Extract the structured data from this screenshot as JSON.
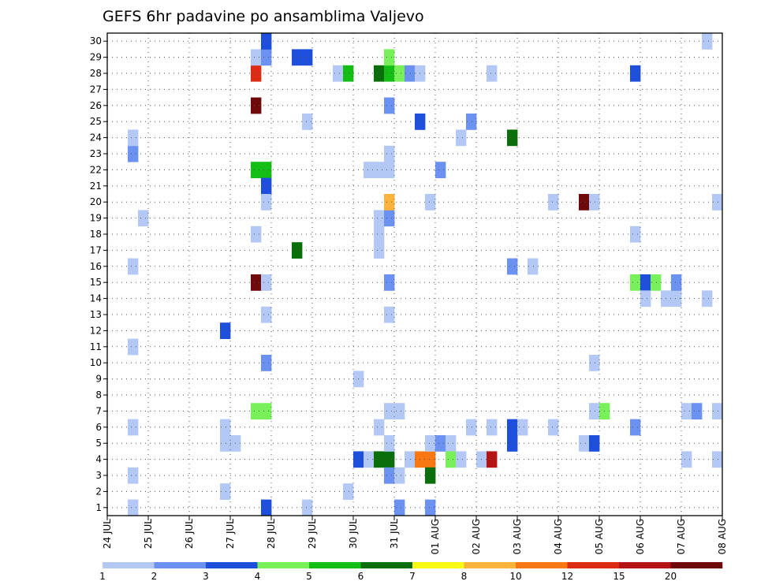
{
  "chart_data": {
    "type": "heatmap",
    "title": "GEFS 6hr padavine po ansamblima Valjevo",
    "xlabel": "",
    "ylabel": "",
    "x_tick_labels": [
      "24 JUL",
      "25 JUL",
      "26 JUL",
      "27 JUL",
      "28 JUL",
      "29 JUL",
      "30 JUL",
      "31 JUL",
      "01 AUG",
      "02 AUG",
      "03 AUG",
      "04 AUG",
      "05 AUG",
      "06 AUG",
      "07 AUG",
      "08 AUG"
    ],
    "x_tick_days": [
      0,
      1,
      2,
      3,
      4,
      5,
      6,
      7,
      8,
      9,
      10,
      11,
      12,
      13,
      14,
      15
    ],
    "xlim": [
      0,
      15
    ],
    "y_tick_labels": [
      "1",
      "2",
      "3",
      "4",
      "5",
      "6",
      "7",
      "8",
      "9",
      "10",
      "11",
      "12",
      "13",
      "14",
      "15",
      "16",
      "17",
      "18",
      "19",
      "20",
      "21",
      "22",
      "23",
      "24",
      "25",
      "26",
      "27",
      "28",
      "29",
      "30"
    ],
    "ylim": [
      0.5,
      30.5
    ],
    "grid": true,
    "time_step_days": 0.25,
    "colorbar": {
      "position": "bottom",
      "labels": [
        "1",
        "2",
        "3",
        "4",
        "5",
        "6",
        "7",
        "8",
        "10",
        "12",
        "15",
        "20"
      ],
      "colors": [
        "#b4c8f5",
        "#6b92f0",
        "#1e4fdc",
        "#78f05a",
        "#14be14",
        "#0a6e0a",
        "#fafa14",
        "#fab43c",
        "#fa7814",
        "#dc2d14",
        "#b41414",
        "#6e0a0a"
      ]
    },
    "cells": [
      {
        "x": 0.5,
        "y": 1,
        "v": 1
      },
      {
        "x": 0.5,
        "y": 3,
        "v": 1
      },
      {
        "x": 0.5,
        "y": 6,
        "v": 1
      },
      {
        "x": 0.5,
        "y": 11,
        "v": 1
      },
      {
        "x": 0.5,
        "y": 16,
        "v": 1
      },
      {
        "x": 0.5,
        "y": 23,
        "v": 2
      },
      {
        "x": 0.5,
        "y": 24,
        "v": 1
      },
      {
        "x": 0.75,
        "y": 19,
        "v": 1
      },
      {
        "x": 2.75,
        "y": 2,
        "v": 1
      },
      {
        "x": 2.75,
        "y": 5,
        "v": 1
      },
      {
        "x": 2.75,
        "y": 6,
        "v": 1
      },
      {
        "x": 3.0,
        "y": 5,
        "v": 1
      },
      {
        "x": 2.75,
        "y": 12,
        "v": 3
      },
      {
        "x": 3.5,
        "y": 7,
        "v": 4
      },
      {
        "x": 3.75,
        "y": 7,
        "v": 4
      },
      {
        "x": 3.5,
        "y": 15,
        "v": 20
      },
      {
        "x": 3.75,
        "y": 15,
        "v": 1
      },
      {
        "x": 3.5,
        "y": 18,
        "v": 1
      },
      {
        "x": 3.5,
        "y": 22,
        "v": 5
      },
      {
        "x": 3.75,
        "y": 22,
        "v": 5
      },
      {
        "x": 3.75,
        "y": 21,
        "v": 3
      },
      {
        "x": 3.5,
        "y": 26,
        "v": 20
      },
      {
        "x": 3.5,
        "y": 28,
        "v": 12
      },
      {
        "x": 3.5,
        "y": 29,
        "v": 1
      },
      {
        "x": 3.75,
        "y": 29,
        "v": 2
      },
      {
        "x": 3.75,
        "y": 30,
        "v": 3
      },
      {
        "x": 3.75,
        "y": 1,
        "v": 3
      },
      {
        "x": 3.75,
        "y": 10,
        "v": 2
      },
      {
        "x": 3.75,
        "y": 13,
        "v": 1
      },
      {
        "x": 3.75,
        "y": 20,
        "v": 1
      },
      {
        "x": 4.5,
        "y": 17,
        "v": 6
      },
      {
        "x": 4.75,
        "y": 1,
        "v": 1
      },
      {
        "x": 4.75,
        "y": 25,
        "v": 1
      },
      {
        "x": 4.5,
        "y": 29,
        "v": 3
      },
      {
        "x": 4.75,
        "y": 29,
        "v": 3
      },
      {
        "x": 5.5,
        "y": 28,
        "v": 1
      },
      {
        "x": 5.75,
        "y": 28,
        "v": 5
      },
      {
        "x": 5.75,
        "y": 2,
        "v": 1
      },
      {
        "x": 6.0,
        "y": 9,
        "v": 1
      },
      {
        "x": 6.0,
        "y": 4,
        "v": 3
      },
      {
        "x": 6.25,
        "y": 4,
        "v": 1
      },
      {
        "x": 6.5,
        "y": 4,
        "v": 6
      },
      {
        "x": 6.75,
        "y": 4,
        "v": 6
      },
      {
        "x": 6.5,
        "y": 6,
        "v": 1
      },
      {
        "x": 6.75,
        "y": 3,
        "v": 2
      },
      {
        "x": 7.0,
        "y": 3,
        "v": 1
      },
      {
        "x": 6.75,
        "y": 5,
        "v": 1
      },
      {
        "x": 6.75,
        "y": 7,
        "v": 1
      },
      {
        "x": 7.0,
        "y": 7,
        "v": 1
      },
      {
        "x": 6.75,
        "y": 13,
        "v": 1
      },
      {
        "x": 6.75,
        "y": 15,
        "v": 2
      },
      {
        "x": 6.5,
        "y": 17,
        "v": 1
      },
      {
        "x": 6.5,
        "y": 18,
        "v": 1
      },
      {
        "x": 6.5,
        "y": 19,
        "v": 1
      },
      {
        "x": 6.75,
        "y": 19,
        "v": 2
      },
      {
        "x": 6.75,
        "y": 20,
        "v": 8
      },
      {
        "x": 6.25,
        "y": 22,
        "v": 1
      },
      {
        "x": 6.5,
        "y": 22,
        "v": 1
      },
      {
        "x": 6.75,
        "y": 22,
        "v": 1
      },
      {
        "x": 6.75,
        "y": 23,
        "v": 1
      },
      {
        "x": 6.75,
        "y": 26,
        "v": 2
      },
      {
        "x": 6.5,
        "y": 28,
        "v": 6
      },
      {
        "x": 6.75,
        "y": 28,
        "v": 5
      },
      {
        "x": 7.0,
        "y": 28,
        "v": 4
      },
      {
        "x": 7.25,
        "y": 28,
        "v": 2
      },
      {
        "x": 7.5,
        "y": 28,
        "v": 1
      },
      {
        "x": 6.75,
        "y": 29,
        "v": 4
      },
      {
        "x": 7.0,
        "y": 1,
        "v": 2
      },
      {
        "x": 7.25,
        "y": 4,
        "v": 1
      },
      {
        "x": 7.5,
        "y": 4,
        "v": 10
      },
      {
        "x": 7.75,
        "y": 4,
        "v": 10
      },
      {
        "x": 7.5,
        "y": 25,
        "v": 3
      },
      {
        "x": 7.75,
        "y": 1,
        "v": 2
      },
      {
        "x": 7.75,
        "y": 3,
        "v": 6
      },
      {
        "x": 7.75,
        "y": 5,
        "v": 1
      },
      {
        "x": 8.0,
        "y": 5,
        "v": 2
      },
      {
        "x": 8.25,
        "y": 5,
        "v": 1
      },
      {
        "x": 7.75,
        "y": 20,
        "v": 1
      },
      {
        "x": 8.0,
        "y": 22,
        "v": 2
      },
      {
        "x": 8.25,
        "y": 4,
        "v": 4
      },
      {
        "x": 8.5,
        "y": 4,
        "v": 1
      },
      {
        "x": 8.5,
        "y": 24,
        "v": 1
      },
      {
        "x": 8.75,
        "y": 6,
        "v": 1
      },
      {
        "x": 8.75,
        "y": 25,
        "v": 2
      },
      {
        "x": 9.0,
        "y": 4,
        "v": 1
      },
      {
        "x": 9.25,
        "y": 4,
        "v": 15
      },
      {
        "x": 9.25,
        "y": 6,
        "v": 1
      },
      {
        "x": 9.25,
        "y": 28,
        "v": 1
      },
      {
        "x": 9.75,
        "y": 5,
        "v": 3
      },
      {
        "x": 9.75,
        "y": 6,
        "v": 3
      },
      {
        "x": 10.0,
        "y": 6,
        "v": 1
      },
      {
        "x": 9.75,
        "y": 16,
        "v": 2
      },
      {
        "x": 10.25,
        "y": 16,
        "v": 1
      },
      {
        "x": 9.75,
        "y": 24,
        "v": 6
      },
      {
        "x": 10.75,
        "y": 6,
        "v": 1
      },
      {
        "x": 10.75,
        "y": 20,
        "v": 1
      },
      {
        "x": 11.5,
        "y": 20,
        "v": 20
      },
      {
        "x": 11.5,
        "y": 5,
        "v": 1
      },
      {
        "x": 11.75,
        "y": 5,
        "v": 3
      },
      {
        "x": 11.75,
        "y": 7,
        "v": 1
      },
      {
        "x": 12.0,
        "y": 7,
        "v": 4
      },
      {
        "x": 11.75,
        "y": 10,
        "v": 1
      },
      {
        "x": 11.75,
        "y": 20,
        "v": 1
      },
      {
        "x": 12.75,
        "y": 6,
        "v": 2
      },
      {
        "x": 12.75,
        "y": 15,
        "v": 4
      },
      {
        "x": 13.0,
        "y": 15,
        "v": 3
      },
      {
        "x": 13.25,
        "y": 15,
        "v": 4
      },
      {
        "x": 13.0,
        "y": 14,
        "v": 1
      },
      {
        "x": 13.5,
        "y": 14,
        "v": 1
      },
      {
        "x": 13.75,
        "y": 14,
        "v": 1
      },
      {
        "x": 13.75,
        "y": 15,
        "v": 2
      },
      {
        "x": 12.75,
        "y": 18,
        "v": 1
      },
      {
        "x": 12.75,
        "y": 28,
        "v": 3
      },
      {
        "x": 14.0,
        "y": 4,
        "v": 1
      },
      {
        "x": 14.0,
        "y": 7,
        "v": 1
      },
      {
        "x": 14.25,
        "y": 7,
        "v": 2
      },
      {
        "x": 14.5,
        "y": 14,
        "v": 1
      },
      {
        "x": 14.5,
        "y": 30,
        "v": 1
      },
      {
        "x": 14.75,
        "y": 4,
        "v": 1
      },
      {
        "x": 14.75,
        "y": 7,
        "v": 1
      },
      {
        "x": 14.75,
        "y": 20,
        "v": 1
      }
    ]
  }
}
